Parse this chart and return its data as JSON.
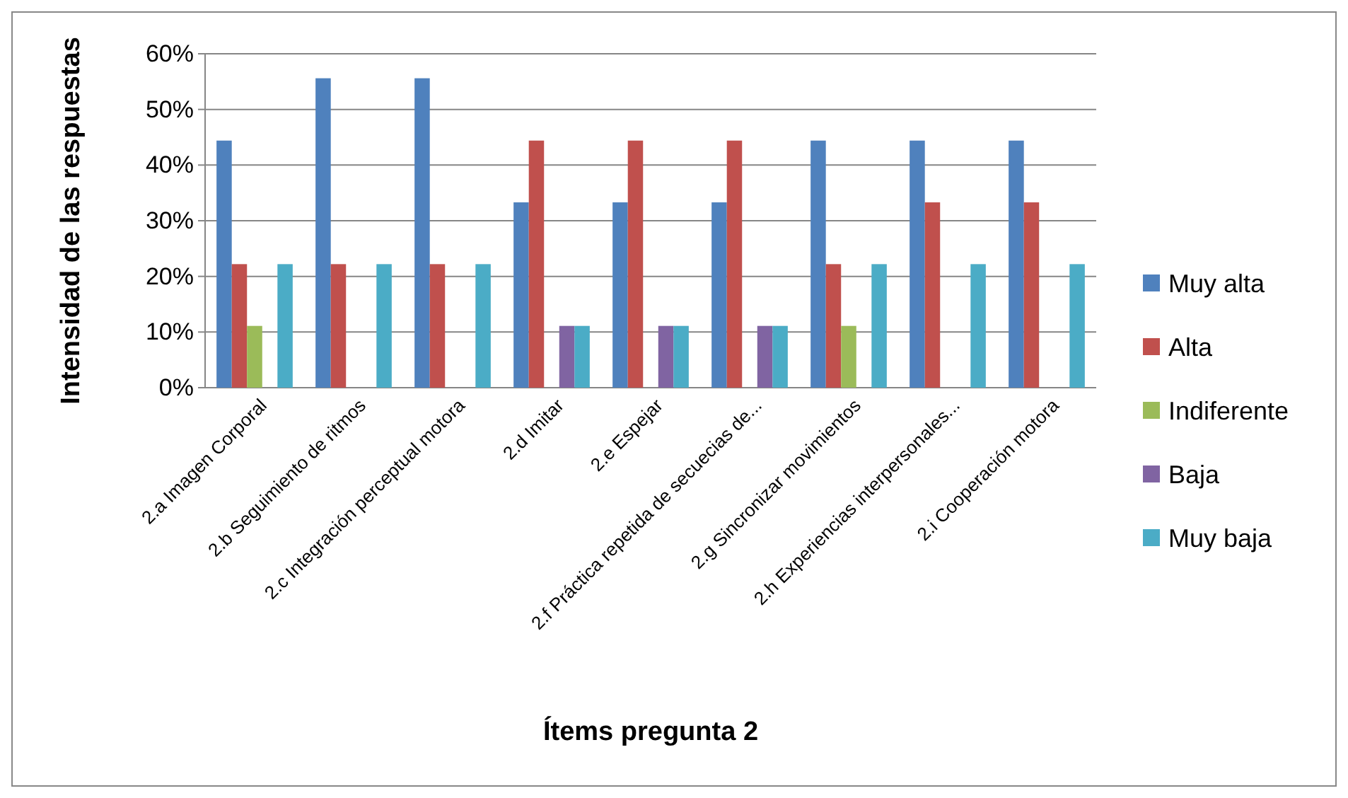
{
  "chart_data": {
    "type": "bar",
    "xlabel": "Ítems pregunta 2",
    "ylabel": "Intensidad de las respuestas",
    "categories": [
      "2.a Imagen Corporal",
      "2.b Seguimiento de ritmos",
      "2.c Integración perceptual motora",
      "2.d Imitar",
      "2.e Espejar",
      "2.f Práctica repetida de secuecias de...",
      "2.g Sincronizar movimientos",
      "2.h Experiencias interpersonales...",
      "2.i Cooperación motora"
    ],
    "series": [
      {
        "name": "Muy alta",
        "color": "#4f81bd",
        "values": [
          44.4,
          55.6,
          55.6,
          33.3,
          33.3,
          33.3,
          44.4,
          44.4,
          44.4
        ]
      },
      {
        "name": "Alta",
        "color": "#c0504d",
        "values": [
          22.2,
          22.2,
          22.2,
          44.4,
          44.4,
          44.4,
          22.2,
          33.3,
          33.3
        ]
      },
      {
        "name": "Indiferente",
        "color": "#9bbb59",
        "values": [
          11.1,
          0,
          0,
          0,
          0,
          0,
          11.1,
          0,
          0
        ]
      },
      {
        "name": "Baja",
        "color": "#8064a2",
        "values": [
          0,
          0,
          0,
          11.1,
          11.1,
          11.1,
          0,
          0,
          0
        ]
      },
      {
        "name": "Muy baja",
        "color": "#4bacc6",
        "values": [
          22.2,
          22.2,
          22.2,
          11.1,
          11.1,
          11.1,
          22.2,
          22.2,
          22.2
        ]
      }
    ],
    "ylim": [
      0,
      60
    ],
    "yticks": [
      {
        "value": 0,
        "label": "0%"
      },
      {
        "value": 10,
        "label": "10%"
      },
      {
        "value": 20,
        "label": "20%"
      },
      {
        "value": 30,
        "label": "30%"
      },
      {
        "value": 40,
        "label": "40%"
      },
      {
        "value": 50,
        "label": "50%"
      },
      {
        "value": 60,
        "label": "60%"
      }
    ],
    "grid": "y",
    "legend": "right"
  }
}
